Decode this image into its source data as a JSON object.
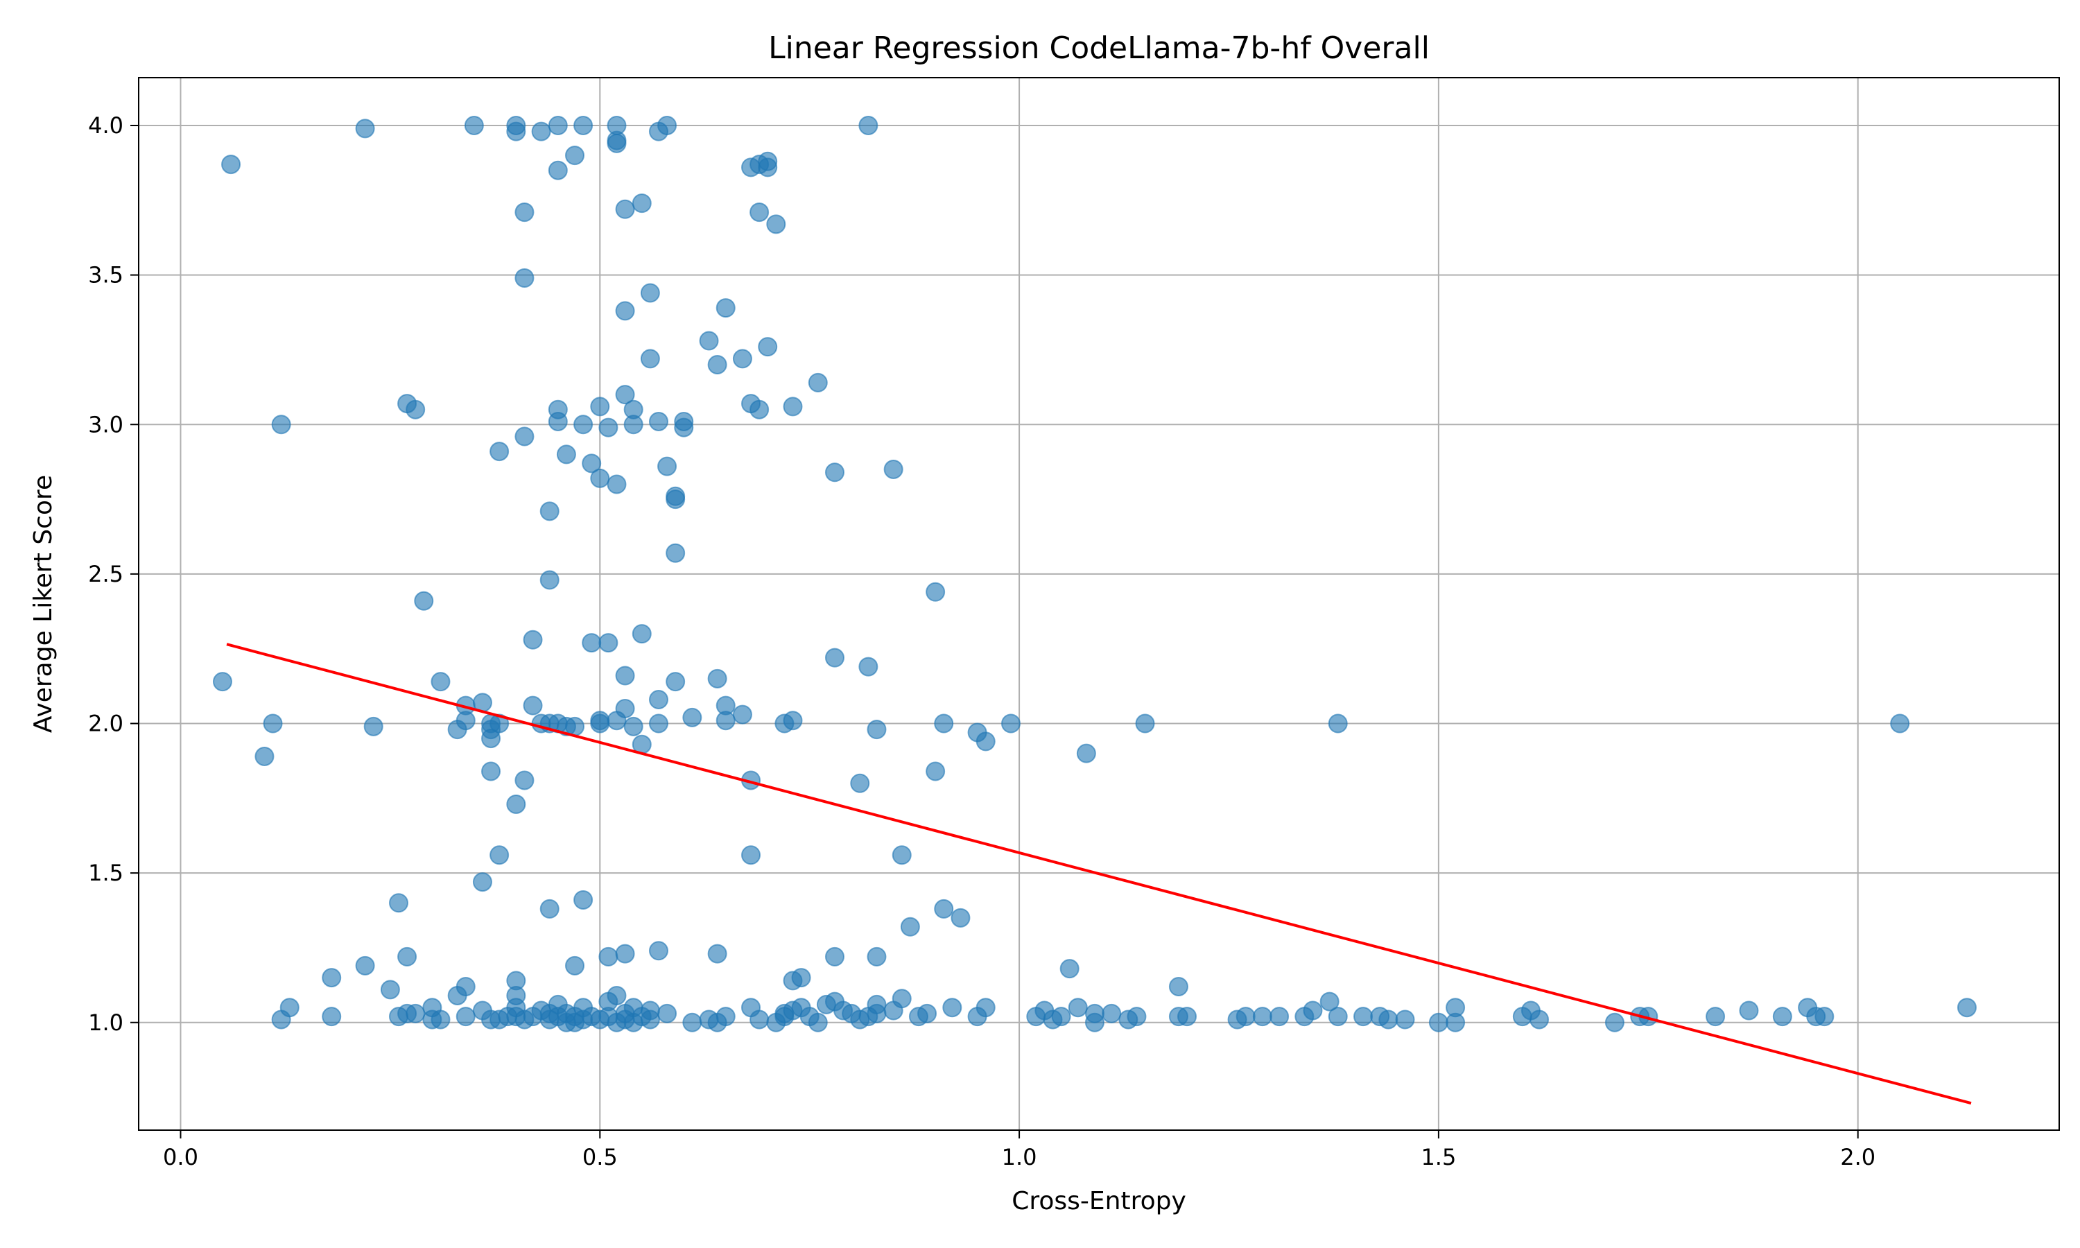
{
  "chart_data": {
    "type": "scatter",
    "title": "Linear Regression CodeLlama-7b-hf Overall",
    "xlabel": "Cross-Entropy",
    "ylabel": "Average Likert Score",
    "xlim": [
      -0.05,
      2.24
    ],
    "ylim": [
      0.64,
      4.16
    ],
    "xticks": [
      0.0,
      0.5,
      1.0,
      1.5,
      2.0
    ],
    "xtick_labels": [
      "0.0",
      "0.5",
      "1.0",
      "1.5",
      "2.0"
    ],
    "yticks": [
      1.0,
      1.5,
      2.0,
      2.5,
      3.0,
      3.5,
      4.0
    ],
    "ytick_labels": [
      "1.0",
      "1.5",
      "2.0",
      "2.5",
      "3.0",
      "3.5",
      "4.0"
    ],
    "grid": true,
    "colors": {
      "points": "#1f77b4",
      "regression": "#ff0000",
      "grid": "#b0b0b0"
    },
    "regression_line": {
      "x": [
        0.055,
        2.135
      ],
      "y": [
        2.265,
        0.73
      ]
    },
    "points": [
      [
        0.06,
        3.87
      ],
      [
        0.22,
        3.99
      ],
      [
        0.35,
        4.0
      ],
      [
        0.4,
        3.98
      ],
      [
        0.4,
        4.0
      ],
      [
        0.43,
        3.98
      ],
      [
        0.45,
        4.0
      ],
      [
        0.48,
        4.0
      ],
      [
        0.52,
        4.0
      ],
      [
        0.52,
        3.95
      ],
      [
        0.52,
        3.94
      ],
      [
        0.57,
        3.98
      ],
      [
        0.58,
        4.0
      ],
      [
        0.82,
        4.0
      ],
      [
        0.47,
        3.9
      ],
      [
        0.45,
        3.85
      ],
      [
        0.68,
        3.86
      ],
      [
        0.69,
        3.87
      ],
      [
        0.7,
        3.86
      ],
      [
        0.7,
        3.88
      ],
      [
        0.41,
        3.71
      ],
      [
        0.53,
        3.72
      ],
      [
        0.55,
        3.74
      ],
      [
        0.69,
        3.71
      ],
      [
        0.71,
        3.67
      ],
      [
        0.41,
        3.49
      ],
      [
        0.56,
        3.44
      ],
      [
        0.65,
        3.39
      ],
      [
        0.53,
        3.38
      ],
      [
        0.63,
        3.28
      ],
      [
        0.7,
        3.26
      ],
      [
        0.56,
        3.22
      ],
      [
        0.67,
        3.22
      ],
      [
        0.64,
        3.2
      ],
      [
        0.76,
        3.14
      ],
      [
        0.53,
        3.1
      ],
      [
        0.27,
        3.07
      ],
      [
        0.28,
        3.05
      ],
      [
        0.45,
        3.05
      ],
      [
        0.5,
        3.06
      ],
      [
        0.54,
        3.05
      ],
      [
        0.68,
        3.07
      ],
      [
        0.69,
        3.05
      ],
      [
        0.73,
        3.06
      ],
      [
        0.12,
        3.0
      ],
      [
        0.41,
        2.96
      ],
      [
        0.45,
        3.01
      ],
      [
        0.48,
        3.0
      ],
      [
        0.51,
        2.99
      ],
      [
        0.54,
        3.0
      ],
      [
        0.57,
        3.01
      ],
      [
        0.6,
        2.99
      ],
      [
        0.6,
        3.01
      ],
      [
        0.38,
        2.91
      ],
      [
        0.46,
        2.9
      ],
      [
        0.49,
        2.87
      ],
      [
        0.58,
        2.86
      ],
      [
        0.85,
        2.85
      ],
      [
        0.78,
        2.84
      ],
      [
        0.5,
        2.82
      ],
      [
        0.52,
        2.8
      ],
      [
        0.59,
        2.75
      ],
      [
        0.59,
        2.76
      ],
      [
        0.44,
        2.71
      ],
      [
        0.59,
        2.57
      ],
      [
        0.44,
        2.48
      ],
      [
        0.9,
        2.44
      ],
      [
        0.29,
        2.41
      ],
      [
        0.55,
        2.3
      ],
      [
        0.42,
        2.28
      ],
      [
        0.49,
        2.27
      ],
      [
        0.51,
        2.27
      ],
      [
        0.78,
        2.22
      ],
      [
        0.82,
        2.19
      ],
      [
        0.53,
        2.16
      ],
      [
        0.64,
        2.15
      ],
      [
        0.05,
        2.14
      ],
      [
        0.31,
        2.14
      ],
      [
        0.59,
        2.14
      ],
      [
        0.57,
        2.08
      ],
      [
        0.36,
        2.07
      ],
      [
        0.34,
        2.06
      ],
      [
        0.42,
        2.06
      ],
      [
        0.65,
        2.06
      ],
      [
        0.53,
        2.05
      ],
      [
        0.67,
        2.03
      ],
      [
        0.61,
        2.02
      ],
      [
        0.11,
        2.0
      ],
      [
        0.23,
        1.99
      ],
      [
        0.33,
        1.98
      ],
      [
        0.34,
        2.01
      ],
      [
        0.37,
        2.0
      ],
      [
        0.37,
        1.98
      ],
      [
        0.38,
        2.0
      ],
      [
        0.43,
        2.0
      ],
      [
        0.44,
        2.0
      ],
      [
        0.45,
        2.0
      ],
      [
        0.46,
        1.99
      ],
      [
        0.47,
        1.99
      ],
      [
        0.5,
        2.0
      ],
      [
        0.5,
        2.01
      ],
      [
        0.52,
        2.01
      ],
      [
        0.54,
        1.99
      ],
      [
        0.57,
        2.0
      ],
      [
        0.65,
        2.01
      ],
      [
        0.72,
        2.0
      ],
      [
        0.73,
        2.01
      ],
      [
        0.83,
        1.98
      ],
      [
        0.91,
        2.0
      ],
      [
        0.95,
        1.97
      ],
      [
        0.99,
        2.0
      ],
      [
        0.96,
        1.94
      ],
      [
        1.15,
        2.0
      ],
      [
        1.38,
        2.0
      ],
      [
        2.05,
        2.0
      ],
      [
        0.37,
        1.95
      ],
      [
        0.55,
        1.93
      ],
      [
        1.08,
        1.9
      ],
      [
        0.1,
        1.89
      ],
      [
        0.37,
        1.84
      ],
      [
        0.9,
        1.84
      ],
      [
        0.41,
        1.81
      ],
      [
        0.68,
        1.81
      ],
      [
        0.81,
        1.8
      ],
      [
        0.4,
        1.73
      ],
      [
        0.38,
        1.56
      ],
      [
        0.68,
        1.56
      ],
      [
        0.86,
        1.56
      ],
      [
        0.36,
        1.47
      ],
      [
        0.26,
        1.4
      ],
      [
        0.48,
        1.41
      ],
      [
        0.44,
        1.38
      ],
      [
        0.91,
        1.38
      ],
      [
        0.93,
        1.35
      ],
      [
        0.87,
        1.32
      ],
      [
        0.57,
        1.24
      ],
      [
        0.53,
        1.23
      ],
      [
        0.64,
        1.23
      ],
      [
        0.27,
        1.22
      ],
      [
        0.51,
        1.22
      ],
      [
        0.78,
        1.22
      ],
      [
        0.83,
        1.22
      ],
      [
        0.22,
        1.19
      ],
      [
        0.47,
        1.19
      ],
      [
        1.06,
        1.18
      ],
      [
        0.18,
        1.15
      ],
      [
        0.4,
        1.14
      ],
      [
        0.73,
        1.14
      ],
      [
        0.74,
        1.15
      ],
      [
        0.34,
        1.12
      ],
      [
        1.19,
        1.12
      ],
      [
        0.25,
        1.11
      ],
      [
        0.33,
        1.09
      ],
      [
        0.4,
        1.09
      ],
      [
        0.52,
        1.09
      ],
      [
        0.13,
        1.05
      ],
      [
        0.86,
        1.08
      ],
      [
        1.37,
        1.07
      ],
      [
        0.12,
        1.01
      ],
      [
        0.18,
        1.02
      ],
      [
        0.26,
        1.02
      ],
      [
        0.27,
        1.03
      ],
      [
        0.28,
        1.03
      ],
      [
        0.3,
        1.01
      ],
      [
        0.3,
        1.05
      ],
      [
        0.31,
        1.01
      ],
      [
        0.34,
        1.02
      ],
      [
        0.36,
        1.04
      ],
      [
        0.37,
        1.01
      ],
      [
        0.38,
        1.01
      ],
      [
        0.39,
        1.02
      ],
      [
        0.4,
        1.02
      ],
      [
        0.4,
        1.05
      ],
      [
        0.41,
        1.01
      ],
      [
        0.42,
        1.02
      ],
      [
        0.43,
        1.04
      ],
      [
        0.44,
        1.03
      ],
      [
        0.44,
        1.01
      ],
      [
        0.45,
        1.06
      ],
      [
        0.45,
        1.02
      ],
      [
        0.46,
        1.0
      ],
      [
        0.46,
        1.03
      ],
      [
        0.47,
        1.02
      ],
      [
        0.47,
        1.0
      ],
      [
        0.48,
        1.01
      ],
      [
        0.48,
        1.05
      ],
      [
        0.49,
        1.02
      ],
      [
        0.5,
        1.01
      ],
      [
        0.51,
        1.07
      ],
      [
        0.51,
        1.02
      ],
      [
        0.52,
        1.0
      ],
      [
        0.53,
        1.01
      ],
      [
        0.53,
        1.03
      ],
      [
        0.54,
        1.05
      ],
      [
        0.54,
        1.0
      ],
      [
        0.55,
        1.02
      ],
      [
        0.56,
        1.04
      ],
      [
        0.56,
        1.01
      ],
      [
        0.58,
        1.03
      ],
      [
        0.61,
        1.0
      ],
      [
        0.63,
        1.01
      ],
      [
        0.64,
        1.0
      ],
      [
        0.65,
        1.02
      ],
      [
        0.68,
        1.05
      ],
      [
        0.69,
        1.01
      ],
      [
        0.71,
        1.0
      ],
      [
        0.72,
        1.03
      ],
      [
        0.72,
        1.02
      ],
      [
        0.73,
        1.04
      ],
      [
        0.74,
        1.05
      ],
      [
        0.75,
        1.02
      ],
      [
        0.76,
        1.0
      ],
      [
        0.77,
        1.06
      ],
      [
        0.78,
        1.07
      ],
      [
        0.79,
        1.04
      ],
      [
        0.8,
        1.03
      ],
      [
        0.81,
        1.01
      ],
      [
        0.82,
        1.02
      ],
      [
        0.83,
        1.03
      ],
      [
        0.83,
        1.06
      ],
      [
        0.85,
        1.04
      ],
      [
        0.88,
        1.02
      ],
      [
        0.89,
        1.03
      ],
      [
        0.92,
        1.05
      ],
      [
        0.95,
        1.02
      ],
      [
        0.96,
        1.05
      ],
      [
        1.02,
        1.02
      ],
      [
        1.03,
        1.04
      ],
      [
        1.04,
        1.01
      ],
      [
        1.05,
        1.02
      ],
      [
        1.07,
        1.05
      ],
      [
        1.09,
        1.0
      ],
      [
        1.09,
        1.03
      ],
      [
        1.11,
        1.03
      ],
      [
        1.13,
        1.01
      ],
      [
        1.14,
        1.02
      ],
      [
        1.19,
        1.02
      ],
      [
        1.2,
        1.02
      ],
      [
        1.26,
        1.01
      ],
      [
        1.27,
        1.02
      ],
      [
        1.29,
        1.02
      ],
      [
        1.31,
        1.02
      ],
      [
        1.34,
        1.02
      ],
      [
        1.35,
        1.04
      ],
      [
        1.38,
        1.02
      ],
      [
        1.41,
        1.02
      ],
      [
        1.43,
        1.02
      ],
      [
        1.44,
        1.01
      ],
      [
        1.46,
        1.01
      ],
      [
        1.5,
        1.0
      ],
      [
        1.52,
        1.05
      ],
      [
        1.52,
        1.0
      ],
      [
        1.6,
        1.02
      ],
      [
        1.61,
        1.04
      ],
      [
        1.62,
        1.01
      ],
      [
        1.71,
        1.0
      ],
      [
        1.74,
        1.02
      ],
      [
        1.75,
        1.02
      ],
      [
        1.83,
        1.02
      ],
      [
        1.87,
        1.04
      ],
      [
        1.91,
        1.02
      ],
      [
        1.94,
        1.05
      ],
      [
        1.95,
        1.02
      ],
      [
        1.96,
        1.02
      ],
      [
        2.13,
        1.05
      ]
    ]
  }
}
